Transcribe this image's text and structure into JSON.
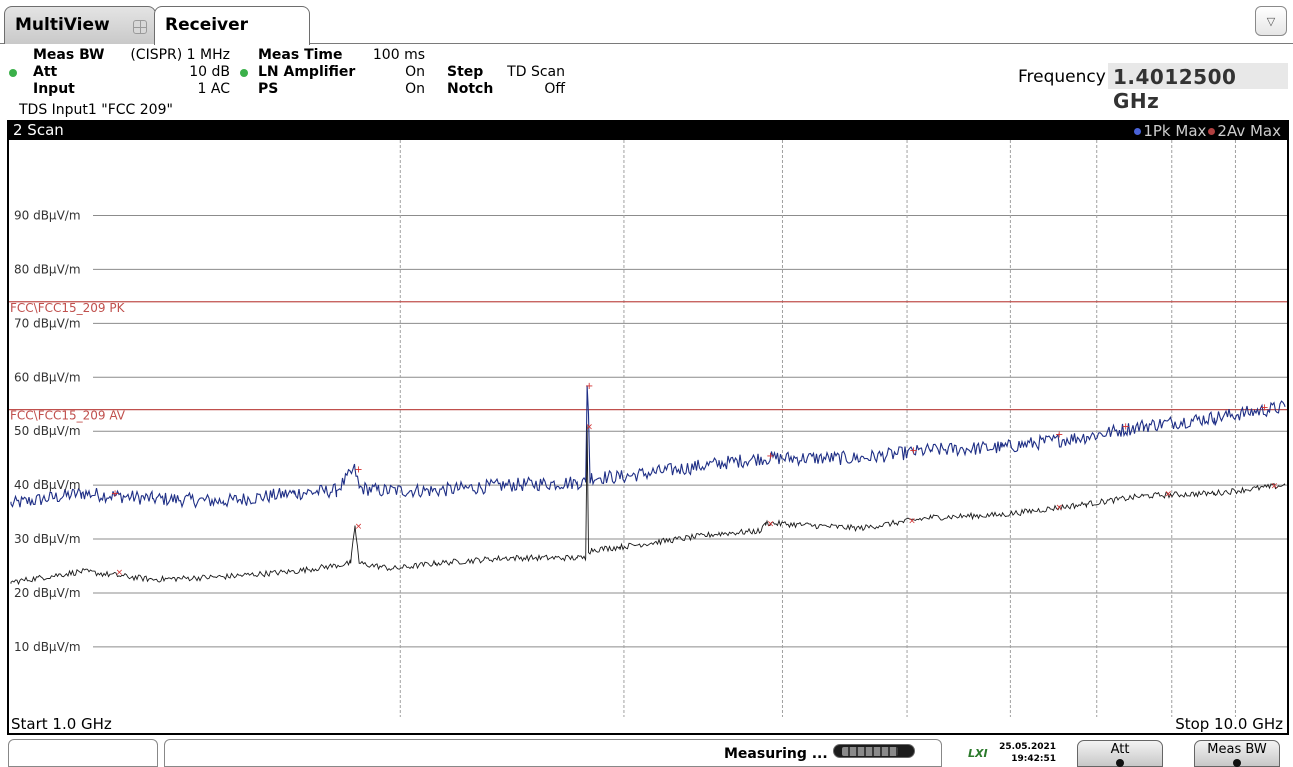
{
  "tabs": [
    {
      "label": "MultiView"
    },
    {
      "label": "Receiver"
    }
  ],
  "dropdown_glyph": "▽",
  "settings": {
    "meas_bw_label": "Meas BW",
    "meas_bw_value": "(CISPR) 1 MHz",
    "att_label": "Att",
    "att_value": "10 dB",
    "input_label": "Input",
    "input_value": "1 AC",
    "meas_time_label": "Meas Time",
    "meas_time_value": "100 ms",
    "ln_amp_label": "LN Amplifier",
    "ln_amp_value": "On",
    "ps_label": "PS",
    "ps_value": "On",
    "step_label": "Step",
    "step_value": "TD Scan",
    "notch_label": "Notch",
    "notch_value": "Off",
    "tds_line": "TDS Input1 \"FCC 209\"",
    "frequency_label": "Frequency",
    "frequency_value": "1.4012500 GHz"
  },
  "scan": {
    "title": "2 Scan",
    "legend": [
      {
        "label": "1Pk Max",
        "color": "#2a3a8f"
      },
      {
        "label": "2Av Max",
        "color": "#9a3030"
      }
    ],
    "start_label": "Start 1.0 GHz",
    "stop_label": "Stop 10.0 GHz"
  },
  "chart_data": {
    "type": "line",
    "xlim": [
      1.0,
      10.0
    ],
    "ylim": [
      -3,
      104
    ],
    "y_ticks": [
      10,
      20,
      30,
      40,
      50,
      60,
      70,
      80,
      90
    ],
    "y_tick_labels": [
      "10 dBµV/m",
      "20 dBµV/m",
      "30 dBµV/m",
      "40 dBµV/m",
      "50 dBµV/m",
      "60 dBµV/m",
      "70 dBµV/m",
      "80 dBµV/m",
      "90 dBµV/m"
    ],
    "vertical_gridlines_x": [
      3.75,
      5.33,
      6.45,
      7.33,
      8.06,
      8.67,
      9.2,
      9.65
    ],
    "limit_lines": [
      {
        "label": "FCC\\FCC15_209 PK",
        "value": 74,
        "color": "#c0504d"
      },
      {
        "label": "FCC\\FCC15_209 AV",
        "value": 54,
        "color": "#c0504d"
      }
    ],
    "series": [
      {
        "name": "1Pk Max",
        "color": "#1f2f86",
        "x": [
          1.0,
          1.5,
          2.0,
          2.5,
          3.0,
          3.3,
          3.43,
          3.46,
          3.6,
          4.0,
          4.5,
          5.0,
          5.06,
          5.07,
          5.08,
          5.09,
          5.1,
          5.3,
          6.0,
          6.3,
          7.0,
          7.5,
          8.0,
          8.6,
          9.0,
          9.5,
          10.0
        ],
        "y": [
          36.5,
          38.5,
          37.5,
          37.0,
          38.5,
          39.0,
          43.0,
          39.5,
          39.0,
          39.0,
          40.0,
          40.5,
          40.5,
          58.5,
          53.0,
          41.0,
          41.5,
          41.5,
          44.0,
          45.0,
          45.0,
          46.5,
          47.0,
          49.0,
          51.0,
          52.5,
          54.5
        ]
      },
      {
        "name": "2Av Max",
        "color": "#1a1a1a",
        "x": [
          1.0,
          1.5,
          2.0,
          2.5,
          3.0,
          3.4,
          3.43,
          3.46,
          3.7,
          4.0,
          4.5,
          5.0,
          5.06,
          5.07,
          5.08,
          5.1,
          5.3,
          6.0,
          6.3,
          6.33,
          7.0,
          7.5,
          8.0,
          8.6,
          9.0,
          9.5,
          10.0
        ],
        "y": [
          22.0,
          24.0,
          22.5,
          23.0,
          24.0,
          25.5,
          32.5,
          25.5,
          24.5,
          25.5,
          26.5,
          26.5,
          26.5,
          51.0,
          27.5,
          28.0,
          28.5,
          31.0,
          31.5,
          33.0,
          32.0,
          34.0,
          34.5,
          36.5,
          38.0,
          38.5,
          40.0
        ]
      }
    ],
    "markers": [
      {
        "series": "1Pk Max",
        "x": [
          1.73,
          3.45,
          5.08,
          6.36,
          7.37,
          8.4,
          8.87,
          9.85
        ],
        "y": [
          38.5,
          43.0,
          58.5,
          45.5,
          46.5,
          49.5,
          51.0,
          54.5
        ]
      },
      {
        "series": "2Av Max",
        "x": [
          1.76,
          3.45,
          5.08,
          6.36,
          7.36,
          8.4,
          9.17,
          9.92
        ],
        "y": [
          24.0,
          32.5,
          51.0,
          33.0,
          33.5,
          36.0,
          38.5,
          40.0
        ]
      }
    ]
  },
  "statusbar": {
    "status_text": "Measuring ...",
    "progress": 0.85,
    "lxi_label": "LXI",
    "date": "25.05.2021",
    "time": "19:42:51",
    "softkey_att": "Att",
    "softkey_meas_bw": "Meas BW"
  }
}
